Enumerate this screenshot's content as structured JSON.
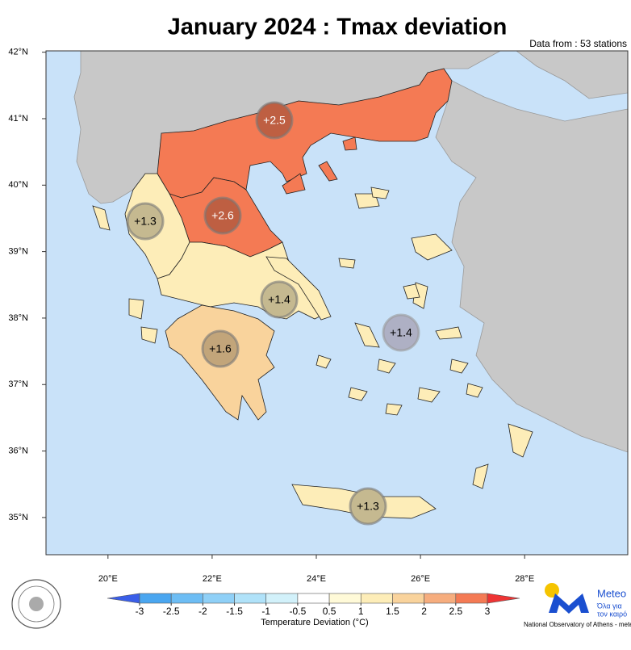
{
  "title": "January 2024 : Tmax deviation",
  "note": "Data from : 53 stations",
  "map": {
    "xlim": [
      18.81,
      29.98
    ],
    "ylim": [
      34.44,
      42.02
    ],
    "xticks": [
      {
        "value": 20,
        "label": "20°E"
      },
      {
        "value": 22,
        "label": "22°E"
      },
      {
        "value": 24,
        "label": "24°E"
      },
      {
        "value": 26,
        "label": "26°E"
      },
      {
        "value": 28,
        "label": "28°E"
      }
    ],
    "yticks": [
      {
        "value": 35,
        "label": "35°N"
      },
      {
        "value": 36,
        "label": "36°N"
      },
      {
        "value": 37,
        "label": "37°N"
      },
      {
        "value": 38,
        "label": "38°N"
      },
      {
        "value": 39,
        "label": "39°N"
      },
      {
        "value": 40,
        "label": "40°N"
      },
      {
        "value": 41,
        "label": "41°N"
      },
      {
        "value": 42,
        "label": "42°N"
      }
    ],
    "regions": {
      "values": [
        2.5,
        2.6,
        1.3,
        1.4,
        1.6,
        1.4,
        1.3
      ],
      "value_labels": [
        "+2.5",
        "+2.6",
        "+1.3",
        "+1.4",
        "+1.6",
        "+1.4",
        "+1.3"
      ]
    }
  },
  "colorbar": {
    "label": "Temperature Deviation (°C)",
    "ticks": [
      -3,
      -2.5,
      -2,
      -1.5,
      -1,
      -0.5,
      0.5,
      1,
      1.5,
      2,
      2.5,
      3
    ],
    "colors": [
      "#3a5ee8",
      "#4aa6f0",
      "#6dbdf4",
      "#8fd0f7",
      "#b0e2f9",
      "#d2f1fa",
      "#ffffff",
      "#fffad8",
      "#fdedb8",
      "#f9d39c",
      "#f6ad7e",
      "#f47a54",
      "#ee3434"
    ]
  },
  "footer": {
    "brand": "Meteo",
    "tagline": [
      "Όλα για",
      "τον καιρό"
    ],
    "credit": "National Observatory of Athens - meteo.gr"
  }
}
